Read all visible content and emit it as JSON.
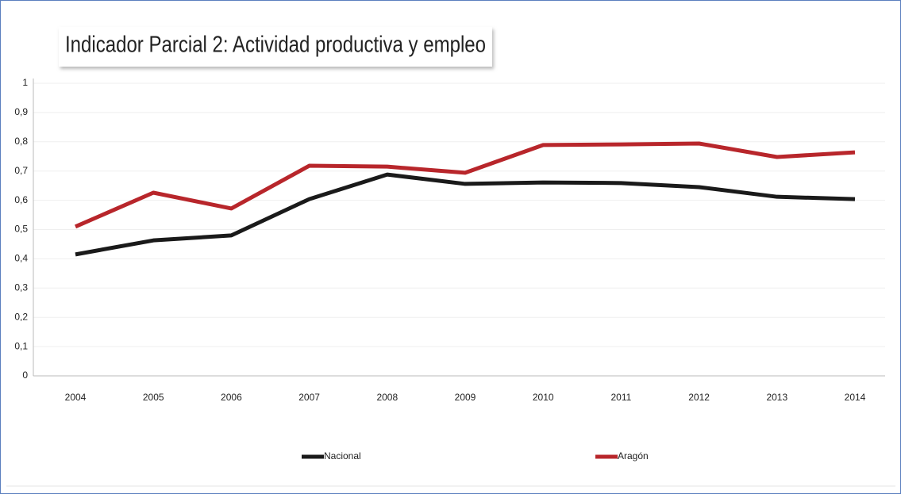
{
  "chart_data": {
    "type": "line",
    "title": "Indicador Parcial 2: Actividad productiva y empleo",
    "categories": [
      "2004",
      "2005",
      "2006",
      "2007",
      "2008",
      "2009",
      "2010",
      "2011",
      "2012",
      "2013",
      "2014"
    ],
    "series": [
      {
        "name": "Nacional",
        "color": "#1a1a1a",
        "values": [
          0.415,
          0.463,
          0.48,
          0.604,
          0.688,
          0.656,
          0.661,
          0.659,
          0.645,
          0.612,
          0.604
        ]
      },
      {
        "name": "Aragón",
        "color": "#b8262b",
        "values": [
          0.51,
          0.626,
          0.572,
          0.718,
          0.715,
          0.694,
          0.789,
          0.791,
          0.794,
          0.748,
          0.764
        ]
      }
    ],
    "ylim": [
      0,
      1
    ],
    "yticks": [
      0,
      {
        "value": 0.1,
        "label": "0,1"
      },
      {
        "value": 0.2,
        "label": "0,2"
      },
      {
        "value": 0.3,
        "label": "0,3"
      },
      {
        "value": 0.4,
        "label": "0,4"
      },
      {
        "value": 0.5,
        "label": "0,5"
      },
      {
        "value": 0.6,
        "label": "0,6"
      },
      {
        "value": 0.7,
        "label": "0,7"
      },
      {
        "value": 0.8,
        "label": "0,8"
      },
      {
        "value": 0.9,
        "label": "0,9"
      },
      1
    ],
    "grid": true
  }
}
